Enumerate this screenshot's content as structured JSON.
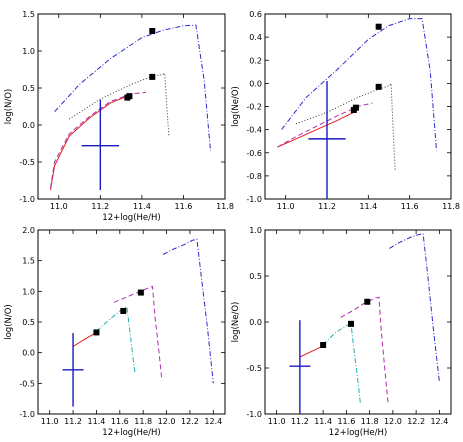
{
  "chart_data": [
    {
      "type": "line",
      "xlabel": "12+log(He/H)",
      "ylabel": "log(N/O)",
      "xlim": [
        10.9,
        11.8
      ],
      "ylim": [
        -1.0,
        1.5
      ],
      "xticks": [
        "11.0",
        "11.2",
        "11.4",
        "11.6",
        "11.8"
      ],
      "yticks": [
        "-1.0",
        "-0.5",
        "0.0",
        "0.5",
        "1.0",
        "1.5"
      ],
      "series": [
        {
          "style": "dash-dot",
          "color": "#2a2ad0",
          "x": [
            10.98,
            11.1,
            11.25,
            11.4,
            11.5,
            11.6,
            11.66,
            11.7,
            11.73
          ],
          "y": [
            0.18,
            0.55,
            0.9,
            1.18,
            1.28,
            1.34,
            1.35,
            0.6,
            -0.35
          ]
        },
        {
          "style": "dotted",
          "color": "#333333",
          "x": [
            11.05,
            11.2,
            11.35,
            11.45,
            11.5,
            11.51,
            11.52,
            11.53
          ],
          "y": [
            0.08,
            0.35,
            0.55,
            0.66,
            0.68,
            0.7,
            0.25,
            -0.15
          ]
        },
        {
          "style": "solid",
          "color": "#e02020",
          "x": [
            10.96,
            10.98,
            11.05,
            11.15,
            11.25,
            11.33
          ],
          "y": [
            -0.88,
            -0.55,
            -0.15,
            0.1,
            0.3,
            0.39
          ]
        },
        {
          "style": "dashed",
          "color": "#b030b0",
          "x": [
            10.96,
            10.98,
            11.05,
            11.15,
            11.25,
            11.35,
            11.42
          ],
          "y": [
            -0.85,
            -0.5,
            -0.12,
            0.12,
            0.32,
            0.42,
            0.44
          ]
        }
      ],
      "markers": {
        "x": [
          11.34,
          11.33,
          11.45,
          11.45
        ],
        "y": [
          0.39,
          0.37,
          0.65,
          1.27
        ]
      },
      "errorbar": {
        "x": 11.2,
        "y": -0.28,
        "xerr": 0.09,
        "yerr_low": 0.6,
        "yerr_high": 0.62,
        "color": "#1a1ac0"
      }
    },
    {
      "type": "line",
      "xlabel": "",
      "ylabel": "log(Ne/O)",
      "xlim": [
        10.9,
        11.8
      ],
      "ylim": [
        -1.0,
        0.6
      ],
      "xticks": [
        "11.0",
        "11.2",
        "11.4",
        "11.6",
        "11.8"
      ],
      "yticks": [
        "-1.0",
        "-0.8",
        "-0.6",
        "-0.4",
        "-0.2",
        "0.0",
        "0.2",
        "0.4",
        "0.6"
      ],
      "series": [
        {
          "style": "dash-dot",
          "color": "#2a2ad0",
          "x": [
            10.98,
            11.1,
            11.25,
            11.4,
            11.5,
            11.6,
            11.66,
            11.7,
            11.73
          ],
          "y": [
            -0.4,
            -0.12,
            0.12,
            0.38,
            0.5,
            0.56,
            0.56,
            0.1,
            -0.58
          ]
        },
        {
          "style": "dotted",
          "color": "#333333",
          "x": [
            11.05,
            11.2,
            11.35,
            11.45,
            11.5,
            11.51,
            11.52,
            11.53
          ],
          "y": [
            -0.35,
            -0.25,
            -0.12,
            -0.05,
            -0.02,
            0.0,
            -0.4,
            -0.75
          ]
        },
        {
          "style": "solid",
          "color": "#e02020",
          "x": [
            10.96,
            11.05,
            11.15,
            11.25,
            11.33
          ],
          "y": [
            -0.55,
            -0.48,
            -0.4,
            -0.32,
            -0.25
          ]
        },
        {
          "style": "dashed",
          "color": "#b030b0",
          "x": [
            10.96,
            11.05,
            11.15,
            11.25,
            11.35,
            11.42
          ],
          "y": [
            -0.55,
            -0.46,
            -0.37,
            -0.28,
            -0.2,
            -0.17
          ]
        }
      ],
      "markers": {
        "x": [
          11.34,
          11.33,
          11.45,
          11.45
        ],
        "y": [
          -0.21,
          -0.23,
          -0.03,
          0.49
        ]
      },
      "errorbar": {
        "x": 11.2,
        "y": -0.48,
        "xerr": 0.09,
        "yerr_low": 0.52,
        "yerr_high": 0.5,
        "color": "#1a1ac0"
      }
    },
    {
      "type": "line",
      "xlabel": "12+log(He/H)",
      "ylabel": "log(N/O)",
      "xlim": [
        10.9,
        12.5
      ],
      "ylim": [
        -1.0,
        2.0
      ],
      "xticks": [
        "11.0",
        "11.2",
        "11.4",
        "11.6",
        "11.8",
        "12.0",
        "12.2",
        "12.4"
      ],
      "yticks": [
        "-1.0",
        "-0.5",
        "0.0",
        "0.5",
        "1.0",
        "1.5",
        "2.0"
      ],
      "series": [
        {
          "style": "dash-dot",
          "color": "#2a2ad0",
          "x": [
            11.97,
            12.05,
            12.15,
            12.22,
            12.26,
            12.3,
            12.35,
            12.4
          ],
          "y": [
            1.6,
            1.68,
            1.76,
            1.83,
            1.85,
            1.2,
            0.4,
            -0.5
          ]
        },
        {
          "style": "dashed",
          "color": "#b030b0",
          "x": [
            11.55,
            11.65,
            11.75,
            11.85,
            11.88,
            11.9,
            11.93,
            11.96
          ],
          "y": [
            0.82,
            0.9,
            0.98,
            1.06,
            1.08,
            0.6,
            0.1,
            -0.45
          ]
        },
        {
          "style": "solid",
          "color": "#e02020",
          "x": [
            11.2,
            11.3,
            11.4
          ],
          "y": [
            0.1,
            0.22,
            0.33
          ]
        },
        {
          "style": "dash-dot",
          "color": "#20b0b0",
          "x": [
            11.4,
            11.5,
            11.6,
            11.66,
            11.69,
            11.71,
            11.73
          ],
          "y": [
            0.35,
            0.52,
            0.68,
            0.75,
            0.3,
            -0.05,
            -0.32
          ]
        }
      ],
      "markers": {
        "x": [
          11.4,
          11.63,
          11.78
        ],
        "y": [
          0.33,
          0.68,
          0.98
        ]
      },
      "errorbar": {
        "x": 11.2,
        "y": -0.28,
        "xerr": 0.09,
        "yerr_low": 0.6,
        "yerr_high": 0.6,
        "color": "#1a1ac0"
      }
    },
    {
      "type": "line",
      "xlabel": "12+log(He/H)",
      "ylabel": "log(Ne/O)",
      "xlim": [
        10.9,
        12.5
      ],
      "ylim": [
        -1.0,
        1.0
      ],
      "xticks": [
        "11.0",
        "11.2",
        "11.4",
        "11.6",
        "11.8",
        "12.0",
        "12.2",
        "12.4"
      ],
      "yticks": [
        "-1.0",
        "-0.5",
        "0.0",
        "0.5",
        "1.0"
      ],
      "series": [
        {
          "style": "dash-dot",
          "color": "#2a2ad0",
          "x": [
            11.97,
            12.05,
            12.15,
            12.22,
            12.26,
            12.3,
            12.35,
            12.4
          ],
          "y": [
            0.8,
            0.86,
            0.92,
            0.95,
            0.96,
            0.5,
            -0.1,
            -0.65
          ]
        },
        {
          "style": "dashed",
          "color": "#b030b0",
          "x": [
            11.55,
            11.65,
            11.75,
            11.85,
            11.88,
            11.9,
            11.93,
            11.96
          ],
          "y": [
            0.05,
            0.12,
            0.2,
            0.26,
            0.27,
            -0.1,
            -0.5,
            -0.9
          ]
        },
        {
          "style": "solid",
          "color": "#e02020",
          "x": [
            11.2,
            11.3,
            11.4
          ],
          "y": [
            -0.38,
            -0.32,
            -0.26
          ]
        },
        {
          "style": "dash-dot",
          "color": "#20b0b0",
          "x": [
            11.4,
            11.5,
            11.6,
            11.64,
            11.67,
            11.7,
            11.72
          ],
          "y": [
            -0.25,
            -0.12,
            -0.04,
            -0.02,
            -0.35,
            -0.65,
            -0.88
          ]
        }
      ],
      "markers": {
        "x": [
          11.4,
          11.64,
          11.78
        ],
        "y": [
          -0.25,
          -0.02,
          0.22
        ]
      },
      "errorbar": {
        "x": 11.2,
        "y": -0.48,
        "xerr": 0.09,
        "yerr_low": 0.52,
        "yerr_high": 0.5,
        "color": "#1a1ac0"
      }
    }
  ]
}
